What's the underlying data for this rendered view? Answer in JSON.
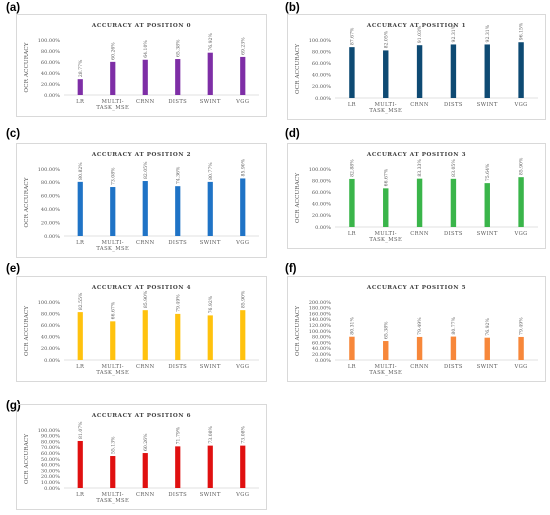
{
  "chart_data": [
    {
      "panel": "(a)",
      "type": "bar",
      "title": "ACCURACY AT POSITION 0",
      "ylabel": "OCR ACCURACY",
      "xlabel": "",
      "categories": [
        "LR",
        "MULTI-TASK_MSE",
        "CRNN",
        "DISTS",
        "SWINT",
        "VGG"
      ],
      "values": [
        28.77,
        60.26,
        64.1,
        65.38,
        76.92,
        69.23
      ],
      "data_labels": [
        "28.77%",
        "60.26%",
        "64.10%",
        "65.38%",
        "76.92%",
        "69.23%"
      ],
      "yticks": [
        "0.00%",
        "20.00%",
        "40.00%",
        "60.00%",
        "80.00%",
        "100.00%"
      ],
      "ylim": [
        0,
        100
      ],
      "color": "#7e2ea6",
      "grid": false
    },
    {
      "panel": "(b)",
      "type": "bar",
      "title": "ACCURACY AT POSITION 1",
      "ylabel": "OCR ACCURACY",
      "xlabel": "",
      "categories": [
        "LR",
        "MULTI-TASK_MSE",
        "CRNN",
        "DISTS",
        "SWINT",
        "VGG"
      ],
      "values": [
        87.67,
        82.05,
        91.03,
        92.31,
        92.31,
        96.15
      ],
      "data_labels": [
        "87.67%",
        "82.05%",
        "91.03%",
        "92.31%",
        "92.31%",
        "96.15%"
      ],
      "yticks": [
        "0.00%",
        "20.00%",
        "40.00%",
        "60.00%",
        "80.00%",
        "100.00%"
      ],
      "ylim": [
        0,
        100
      ],
      "color": "#0e4a73",
      "grid": false
    },
    {
      "panel": "(c)",
      "type": "bar",
      "title": "ACCURACY AT POSITION 2",
      "ylabel": "OCR ACCURACY",
      "xlabel": "",
      "categories": [
        "LR",
        "MULTI-TASK_MSE",
        "CRNN",
        "DISTS",
        "SWINT",
        "VGG"
      ],
      "values": [
        80.82,
        73.08,
        82.05,
        74.36,
        80.77,
        85.9
      ],
      "data_labels": [
        "80.82%",
        "73.08%",
        "82.05%",
        "74.36%",
        "80.77%",
        "85.90%"
      ],
      "yticks": [
        "0.00%",
        "20.00%",
        "40.00%",
        "60.00%",
        "80.00%",
        "100.00%"
      ],
      "ylim": [
        0,
        100
      ],
      "color": "#1f73c6",
      "grid": false
    },
    {
      "panel": "(d)",
      "type": "bar",
      "title": "ACCURACY AT POSITION 3",
      "ylabel": "OCR ACCURACY",
      "xlabel": "",
      "categories": [
        "LR",
        "MULTI-TASK_MSE",
        "CRNN",
        "DISTS",
        "SWINT",
        "VGG"
      ],
      "values": [
        82.88,
        66.67,
        83.33,
        83.05,
        75.64,
        85.9
      ],
      "data_labels": [
        "82.88%",
        "66.67%",
        "83.33%",
        "83.05%",
        "75.64%",
        "85.90%"
      ],
      "yticks": [
        "0.00%",
        "20.00%",
        "40.00%",
        "60.00%",
        "80.00%",
        "100.00%"
      ],
      "ylim": [
        0,
        100
      ],
      "color": "#3ab54a",
      "grid": false
    },
    {
      "panel": "(e)",
      "type": "bar",
      "title": "ACCURACY AT POSITION 4",
      "ylabel": "OCR ACCURACY",
      "xlabel": "",
      "categories": [
        "LR",
        "MULTI-TASK_MSE",
        "CRNN",
        "DISTS",
        "SWINT",
        "VGG"
      ],
      "values": [
        82.55,
        66.67,
        85.9,
        79.49,
        76.92,
        85.9
      ],
      "data_labels": [
        "82.55%",
        "66.67%",
        "85.90%",
        "79.49%",
        "76.92%",
        "85.90%"
      ],
      "yticks": [
        "0.00%",
        "20.00%",
        "40.00%",
        "60.00%",
        "80.00%",
        "100.00%"
      ],
      "ylim": [
        0,
        100
      ],
      "color": "#ffc20e",
      "grid": false
    },
    {
      "panel": "(f)",
      "type": "bar",
      "title": "ACCURACY AT POSITION 5",
      "ylabel": "OCR ACCURACY",
      "xlabel": "",
      "categories": [
        "LR",
        "MULTI-TASK_MSE",
        "CRNN",
        "DISTS",
        "SWINT",
        "VGG"
      ],
      "values": [
        80.31,
        65.38,
        79.49,
        80.77,
        76.92,
        79.49
      ],
      "data_labels": [
        "80.31%",
        "65.38%",
        "79.49%",
        "80.77%",
        "76.92%",
        "79.49%"
      ],
      "yticks": [
        "0.00%",
        "20.00%",
        "40.00%",
        "60.00%",
        "80.00%",
        "100.00%",
        "120.00%",
        "140.00%",
        "160.00%",
        "180.00%",
        "200.00%"
      ],
      "ylim": [
        0,
        200
      ],
      "color": "#f7873a",
      "grid": false
    },
    {
      "panel": "(g)",
      "type": "bar",
      "title": "ACCURACY AT POSITION 6",
      "ylabel": "OCR ACCURACY",
      "xlabel": "",
      "categories": [
        "LR",
        "MULTI-TASK_MSE",
        "CRNN",
        "DISTS",
        "SWINT",
        "VGG"
      ],
      "values": [
        81.07,
        55.13,
        60.26,
        71.79,
        73.08,
        73.08
      ],
      "data_labels": [
        "81.07%",
        "55.13%",
        "60.26%",
        "71.79%",
        "73.08%",
        "73.08%"
      ],
      "yticks": [
        "0.00%",
        "10.00%",
        "20.00%",
        "30.00%",
        "40.00%",
        "50.00%",
        "60.00%",
        "70.00%",
        "80.00%",
        "90.00%",
        "100.00%"
      ],
      "ylim": [
        0,
        100
      ],
      "color": "#e01010",
      "grid": false
    }
  ]
}
